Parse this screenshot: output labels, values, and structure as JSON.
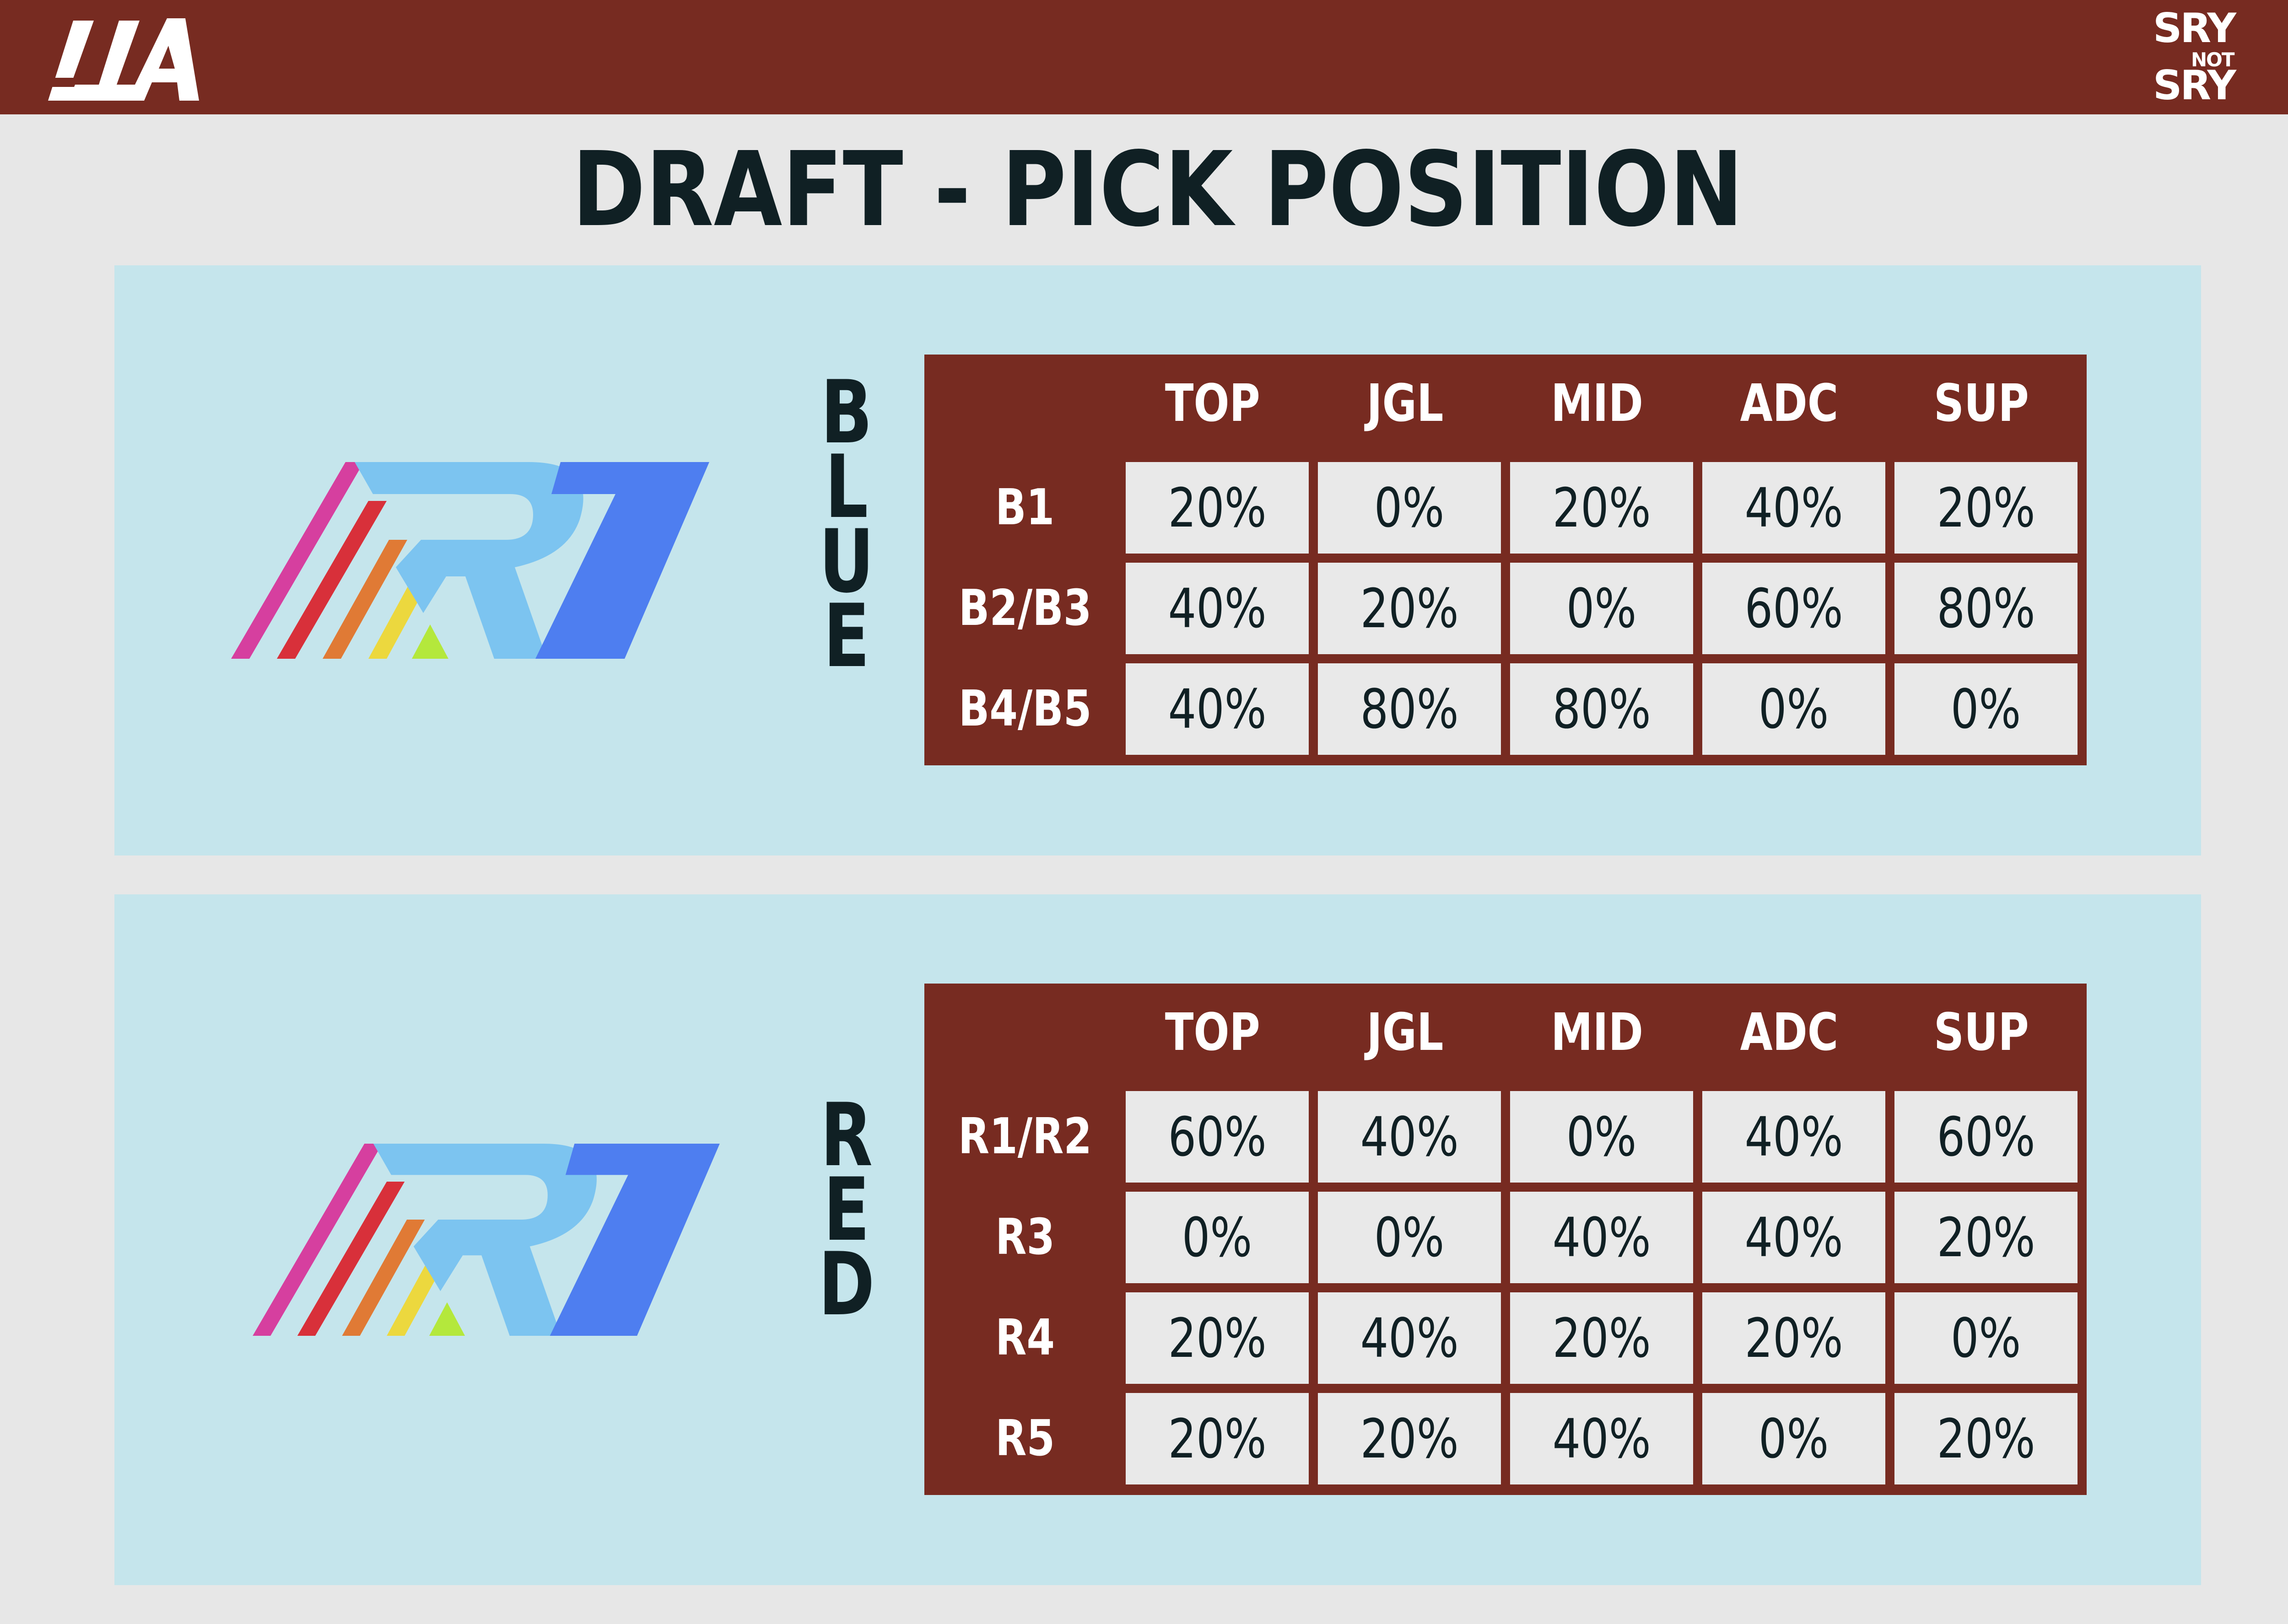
{
  "header": {
    "brand_logo": "LLA",
    "sponsor_logo": {
      "line1": "SRY",
      "line2": "NOT",
      "line3": "SRY"
    },
    "bar_color": "#772b21"
  },
  "title": "DRAFT - PICK POSITION",
  "team_logo": {
    "icon": "r7-logo",
    "text": "R7"
  },
  "colors": {
    "page_background": "#e7e7e7",
    "panel_background": "#c5e5ec",
    "table_background": "#772b21",
    "cell_background": "#e9e9e9",
    "dark_text": "#102024"
  },
  "chart_data": [
    {
      "type": "table",
      "side": "BLUE",
      "columns": [
        "TOP",
        "JGL",
        "MID",
        "ADC",
        "SUP"
      ],
      "rows": [
        {
          "label": "B1",
          "values": [
            "20%",
            "0%",
            "20%",
            "40%",
            "20%"
          ]
        },
        {
          "label": "B2/B3",
          "values": [
            "40%",
            "20%",
            "0%",
            "60%",
            "80%"
          ]
        },
        {
          "label": "B4/B5",
          "values": [
            "40%",
            "80%",
            "80%",
            "0%",
            "0%"
          ]
        }
      ]
    },
    {
      "type": "table",
      "side": "RED",
      "columns": [
        "TOP",
        "JGL",
        "MID",
        "ADC",
        "SUP"
      ],
      "rows": [
        {
          "label": "R1/R2",
          "values": [
            "60%",
            "40%",
            "0%",
            "40%",
            "60%"
          ]
        },
        {
          "label": "R3",
          "values": [
            "0%",
            "0%",
            "40%",
            "40%",
            "20%"
          ]
        },
        {
          "label": "R4",
          "values": [
            "20%",
            "40%",
            "20%",
            "20%",
            "0%"
          ]
        },
        {
          "label": "R5",
          "values": [
            "20%",
            "20%",
            "40%",
            "0%",
            "20%"
          ]
        }
      ]
    }
  ]
}
